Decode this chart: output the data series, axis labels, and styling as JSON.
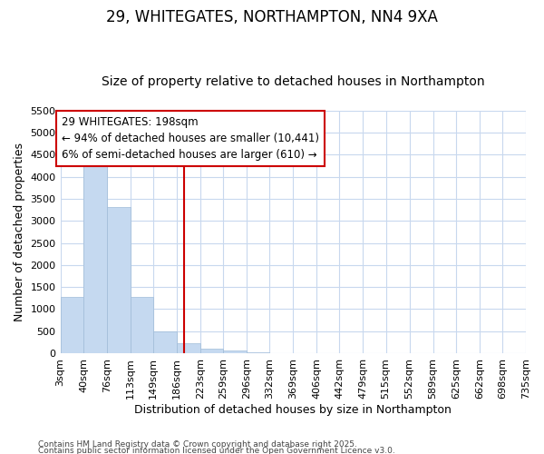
{
  "title1": "29, WHITEGATES, NORTHAMPTON, NN4 9XA",
  "title2": "Size of property relative to detached houses in Northampton",
  "xlabel": "Distribution of detached houses by size in Northampton",
  "ylabel": "Number of detached properties",
  "footer1": "Contains HM Land Registry data © Crown copyright and database right 2025.",
  "footer2": "Contains public sector information licensed under the Open Government Licence v3.0.",
  "property_size": 198,
  "property_label": "29 WHITEGATES: 198sqm",
  "annotation_line1": "← 94% of detached houses are smaller (10,441)",
  "annotation_line2": "6% of semi-detached houses are larger (610) →",
  "bar_color": "#c5d9f0",
  "bar_edge_color": "#a0bcd8",
  "vline_color": "#cc0000",
  "annotation_box_edgecolor": "#cc0000",
  "bin_edges": [
    3,
    40,
    76,
    113,
    149,
    186,
    223,
    259,
    296,
    332,
    369,
    406,
    442,
    479,
    515,
    552,
    589,
    625,
    662,
    698,
    735
  ],
  "bar_heights": [
    1270,
    4370,
    3310,
    1270,
    500,
    235,
    95,
    55,
    20,
    0,
    0,
    0,
    0,
    0,
    0,
    0,
    0,
    0,
    0,
    0
  ],
  "ylim": [
    0,
    5500
  ],
  "yticks": [
    0,
    500,
    1000,
    1500,
    2000,
    2500,
    3000,
    3500,
    4000,
    4500,
    5000,
    5500
  ],
  "bg_color": "#ffffff",
  "grid_color": "#c8d8ee",
  "title1_fontsize": 12,
  "title2_fontsize": 10,
  "axis_label_fontsize": 9,
  "tick_fontsize": 8,
  "annotation_fontsize": 8.5,
  "footer_fontsize": 6.5
}
